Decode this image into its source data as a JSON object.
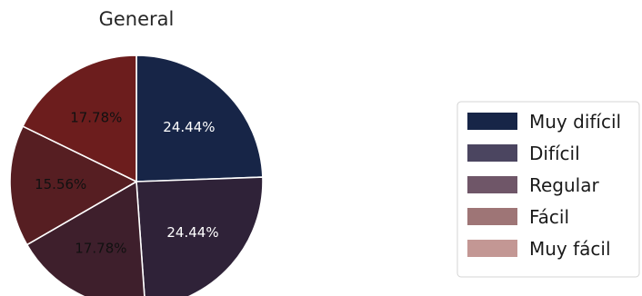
{
  "chart_data": {
    "type": "pie",
    "title": "General",
    "slices": [
      {
        "label": "Muy difícil",
        "value": 24.44,
        "pct_label": "24.44%",
        "color": "#172547",
        "text_color": "#ffffff"
      },
      {
        "label": "Difícil",
        "value": 24.44,
        "pct_label": "24.44%",
        "color": "#2f2238",
        "text_color": "#ffffff"
      },
      {
        "label": "Regular",
        "value": 17.78,
        "pct_label": "17.78%",
        "color": "#3e1f2c",
        "text_color": "#111111"
      },
      {
        "label": "Fácil",
        "value": 15.56,
        "pct_label": "15.56%",
        "color": "#561e22",
        "text_color": "#111111"
      },
      {
        "label": "Muy fácil",
        "value": 17.78,
        "pct_label": "17.78%",
        "color": "#6c1d1d",
        "text_color": "#111111"
      }
    ],
    "legend": {
      "placement": "right",
      "entries": [
        {
          "label": "Muy difícil",
          "color": "#172547"
        },
        {
          "label": "Difícil",
          "color": "#4b4560"
        },
        {
          "label": "Regular",
          "color": "#6f5668"
        },
        {
          "label": "Fácil",
          "color": "#9e7576"
        },
        {
          "label": "Muy fácil",
          "color": "#c39794"
        }
      ]
    }
  }
}
